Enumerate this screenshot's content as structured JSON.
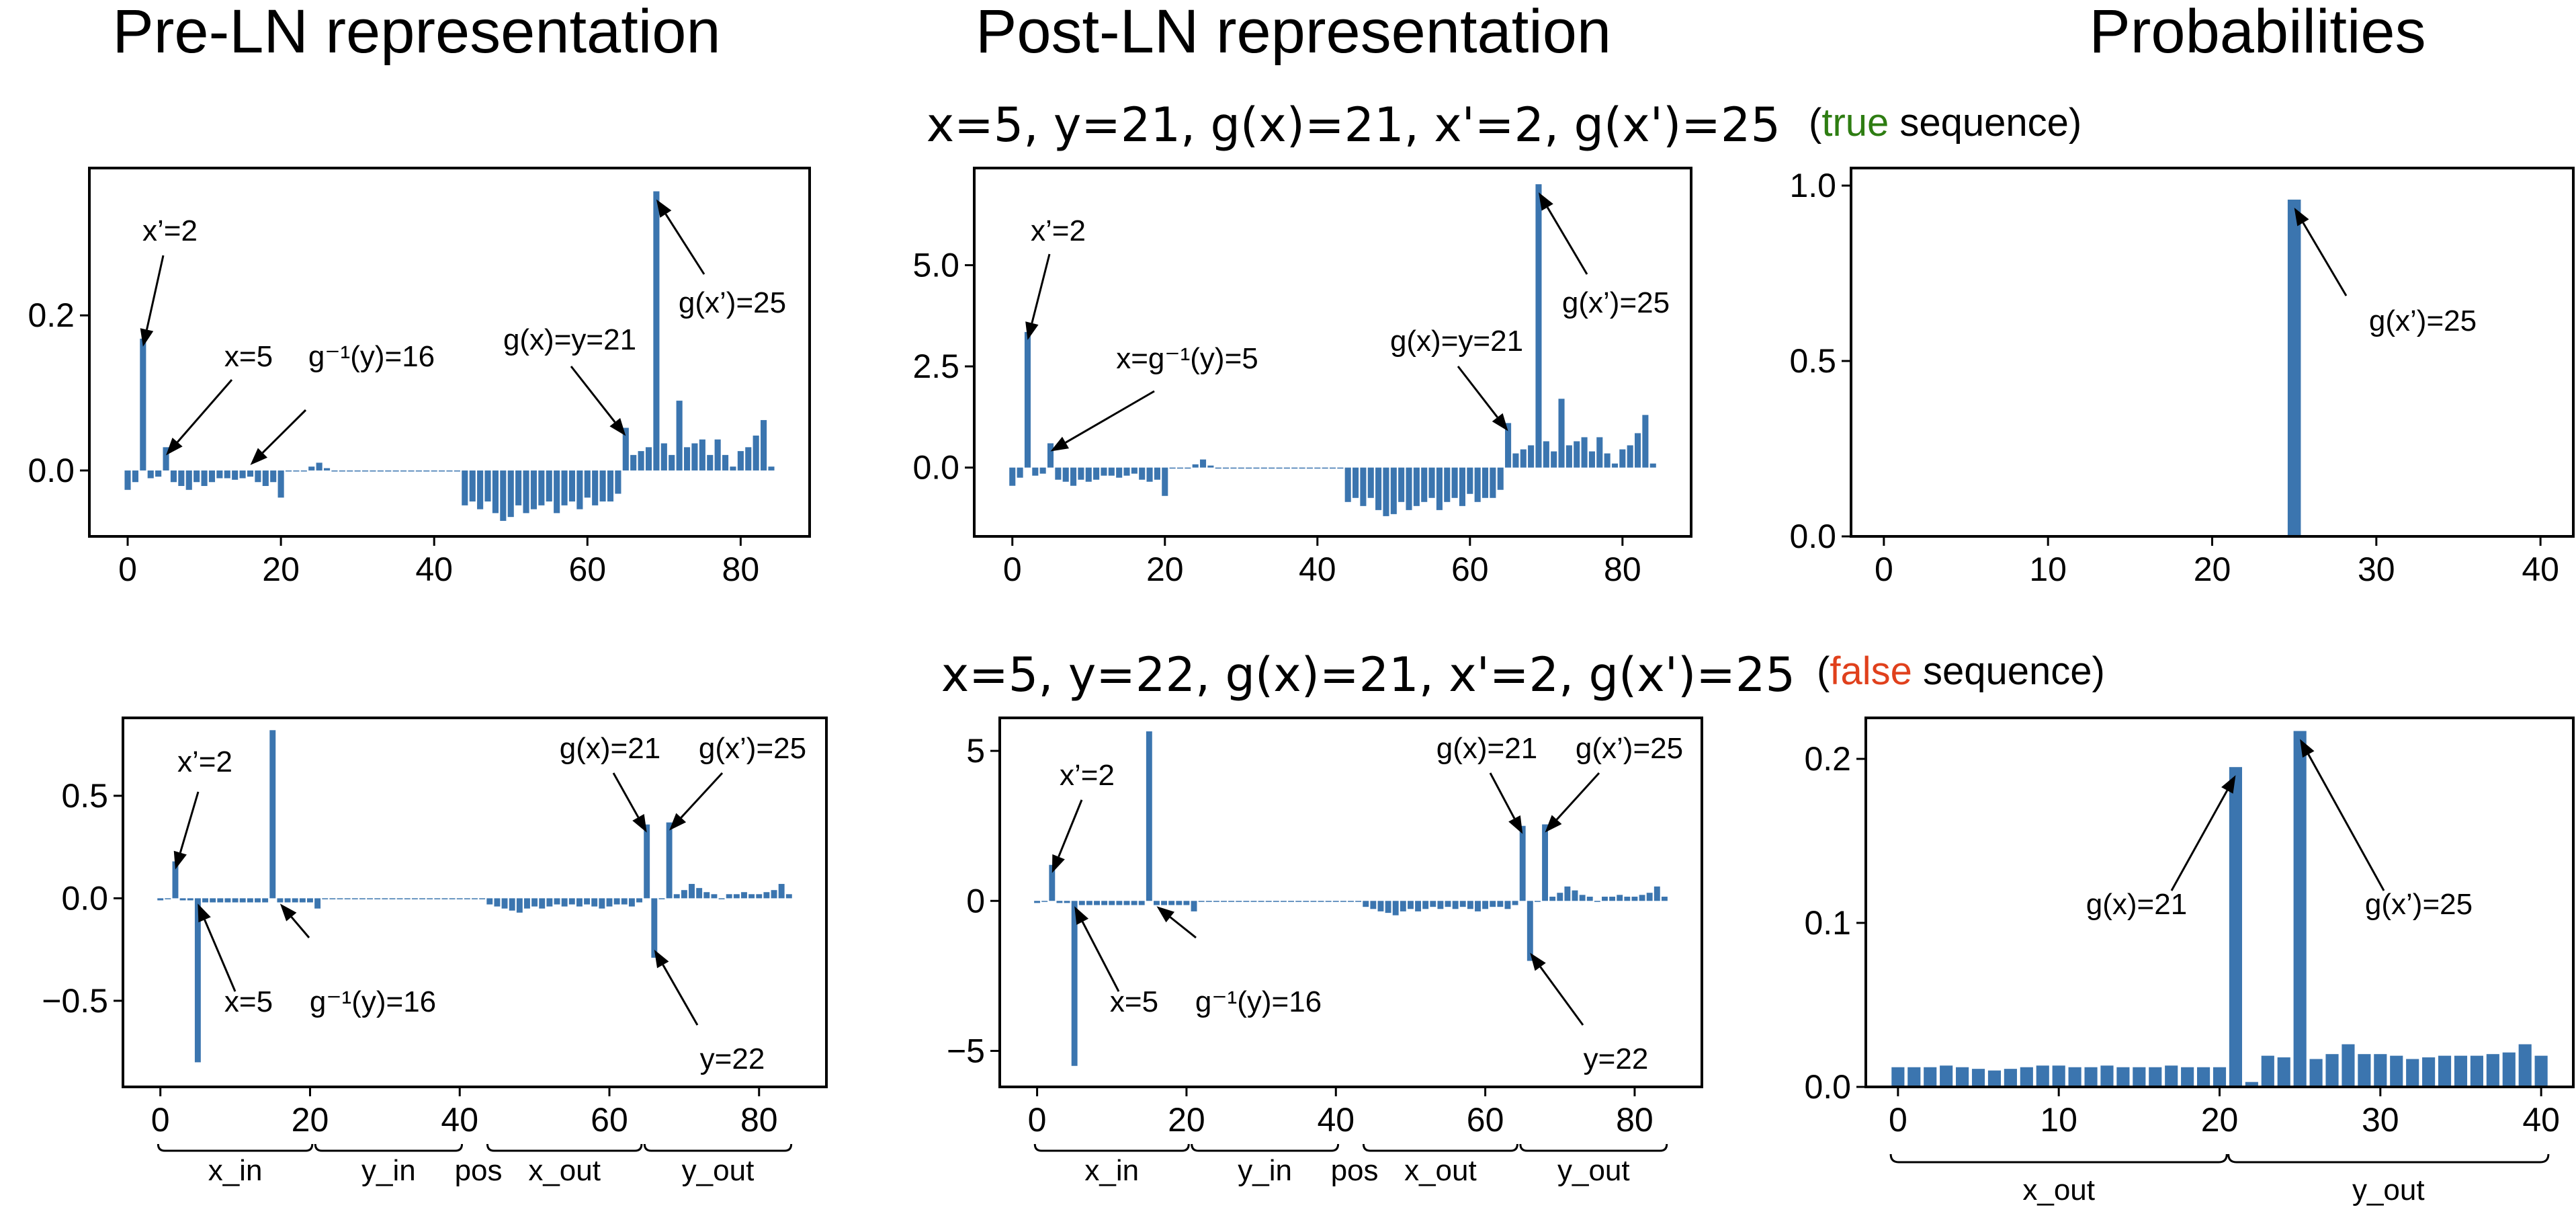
{
  "column_titles": [
    "Pre-LN representation",
    "Post-LN representation",
    "Probabilities"
  ],
  "rows": [
    {
      "sequence": "x=5, y=21, g(x)=21, x'=2, g(x')=25",
      "label_open": "(",
      "label_word": "true",
      "label_rest": " sequence)",
      "label_color": "#2e7d12"
    },
    {
      "sequence": "x=5, y=22, g(x)=21, x'=2, g(x')=25",
      "label_open": "(",
      "label_word": "false",
      "label_rest": " sequence)",
      "label_color": "#e0401c"
    }
  ],
  "colors": {
    "bar": "#3b75af",
    "axes": "#000000"
  },
  "chart_data": [
    {
      "id": "pre_true",
      "type": "bar",
      "title": "Pre-LN representation",
      "xlim": [
        -5,
        89
      ],
      "ylim": [
        -0.085,
        0.39
      ],
      "xticks": [
        0,
        20,
        40,
        60,
        80
      ],
      "yticks": [
        0.0,
        0.2
      ],
      "ytick_labels": [
        "0.0",
        "0.2"
      ],
      "x": [
        0,
        1,
        2,
        3,
        4,
        5,
        6,
        7,
        8,
        9,
        10,
        11,
        12,
        13,
        14,
        15,
        16,
        17,
        18,
        19,
        20,
        21,
        22,
        23,
        24,
        25,
        26,
        27,
        28,
        29,
        30,
        31,
        32,
        33,
        34,
        35,
        36,
        37,
        38,
        39,
        40,
        41,
        42,
        43,
        44,
        45,
        46,
        47,
        48,
        49,
        50,
        51,
        52,
        53,
        54,
        55,
        56,
        57,
        58,
        59,
        60,
        61,
        62,
        63,
        64,
        65,
        66,
        67,
        68,
        69,
        70,
        71,
        72,
        73,
        74,
        75,
        76,
        77,
        78,
        79,
        80,
        81,
        82,
        83,
        84
      ],
      "values": [
        -0.025,
        -0.015,
        0.17,
        -0.01,
        -0.008,
        0.03,
        -0.015,
        -0.02,
        -0.025,
        -0.015,
        -0.02,
        -0.015,
        -0.01,
        -0.01,
        -0.012,
        -0.01,
        -0.008,
        -0.015,
        -0.02,
        -0.015,
        -0.035,
        0.0,
        0.0,
        0.0,
        0.005,
        0.01,
        0.003,
        0.0,
        0.0,
        0.0,
        0.0,
        0.0,
        0.0,
        0.0,
        0.0,
        0.0,
        0.0,
        0.0,
        0.0,
        0.0,
        0.0,
        0.0,
        0.0,
        0.0,
        -0.045,
        -0.04,
        -0.05,
        -0.04,
        -0.055,
        -0.065,
        -0.06,
        -0.045,
        -0.055,
        -0.05,
        -0.045,
        -0.04,
        -0.055,
        -0.045,
        -0.04,
        -0.05,
        -0.035,
        -0.045,
        -0.04,
        -0.04,
        -0.03,
        0.055,
        0.02,
        0.025,
        0.03,
        0.36,
        0.035,
        0.02,
        0.09,
        0.03,
        0.035,
        0.04,
        0.02,
        0.04,
        0.02,
        0.005,
        0.025,
        0.03,
        0.045,
        0.065,
        0.005
      ],
      "annotations": [
        {
          "text": "x’=2",
          "x": 2,
          "y": 0.17
        },
        {
          "text": "x=5",
          "x": 5,
          "y": 0.03
        },
        {
          "text": "g⁻¹(y)=16",
          "x": 16,
          "y": 0.0
        },
        {
          "text": "g(x)=y=21",
          "x": 65,
          "y": 0.055
        },
        {
          "text": "g(x’)=25",
          "x": 69,
          "y": 0.36
        }
      ]
    },
    {
      "id": "post_true",
      "type": "bar",
      "title": "Post-LN representation",
      "xlim": [
        -5,
        89
      ],
      "ylim": [
        -1.7,
        7.4
      ],
      "xticks": [
        0,
        20,
        40,
        60,
        80
      ],
      "yticks": [
        0.0,
        2.5,
        5.0
      ],
      "ytick_labels": [
        "0.0",
        "2.5",
        "5.0"
      ],
      "x": [
        0,
        1,
        2,
        3,
        4,
        5,
        6,
        7,
        8,
        9,
        10,
        11,
        12,
        13,
        14,
        15,
        16,
        17,
        18,
        19,
        20,
        21,
        22,
        23,
        24,
        25,
        26,
        27,
        28,
        29,
        30,
        31,
        32,
        33,
        34,
        35,
        36,
        37,
        38,
        39,
        40,
        41,
        42,
        43,
        44,
        45,
        46,
        47,
        48,
        49,
        50,
        51,
        52,
        53,
        54,
        55,
        56,
        57,
        58,
        59,
        60,
        61,
        62,
        63,
        64,
        65,
        66,
        67,
        68,
        69,
        70,
        71,
        72,
        73,
        74,
        75,
        76,
        77,
        78,
        79,
        80,
        81,
        82,
        83,
        84
      ],
      "values": [
        -0.45,
        -0.25,
        3.35,
        -0.2,
        -0.15,
        0.6,
        -0.3,
        -0.35,
        -0.45,
        -0.3,
        -0.35,
        -0.3,
        -0.2,
        -0.2,
        -0.25,
        -0.2,
        -0.15,
        -0.3,
        -0.35,
        -0.3,
        -0.7,
        0.0,
        0.0,
        0.0,
        0.08,
        0.2,
        0.05,
        0.0,
        0.0,
        0.0,
        0.0,
        0.0,
        0.0,
        0.0,
        0.0,
        0.0,
        0.0,
        0.0,
        0.0,
        0.0,
        0.0,
        0.0,
        0.0,
        0.0,
        -0.85,
        -0.75,
        -0.95,
        -0.75,
        -1.05,
        -1.2,
        -1.15,
        -0.85,
        -1.05,
        -0.95,
        -0.85,
        -0.75,
        -1.05,
        -0.85,
        -0.75,
        -0.95,
        -0.65,
        -0.85,
        -0.75,
        -0.75,
        -0.55,
        1.1,
        0.35,
        0.45,
        0.55,
        7.0,
        0.65,
        0.4,
        1.7,
        0.55,
        0.65,
        0.75,
        0.4,
        0.75,
        0.35,
        0.1,
        0.45,
        0.55,
        0.85,
        1.3,
        0.1
      ],
      "annotations": [
        {
          "text": "x’=2",
          "x": 2,
          "y": 3.35
        },
        {
          "text": "x=g⁻¹(y)=5",
          "x": 5,
          "y": 0.6
        },
        {
          "text": "g(x)=y=21",
          "x": 65,
          "y": 1.1
        },
        {
          "text": "g(x’)=25",
          "x": 69,
          "y": 7.0
        }
      ]
    },
    {
      "id": "prob_true",
      "type": "bar",
      "title": "Probabilities",
      "xlim": [
        -2,
        42
      ],
      "ylim": [
        0,
        1.05
      ],
      "xticks": [
        0,
        10,
        20,
        30,
        40
      ],
      "yticks": [
        0.0,
        0.5,
        1.0
      ],
      "ytick_labels": [
        "0.0",
        "0.5",
        "1.0"
      ],
      "x": [
        0,
        1,
        2,
        3,
        4,
        5,
        6,
        7,
        8,
        9,
        10,
        11,
        12,
        13,
        14,
        15,
        16,
        17,
        18,
        19,
        20,
        21,
        22,
        23,
        24,
        25,
        26,
        27,
        28,
        29,
        30,
        31,
        32,
        33,
        34,
        35,
        36,
        37,
        38,
        39,
        40
      ],
      "values": [
        0,
        0,
        0,
        0,
        0,
        0,
        0,
        0,
        0,
        0,
        0,
        0,
        0,
        0,
        0,
        0,
        0,
        0,
        0,
        0,
        0,
        0,
        0,
        0,
        0,
        0.96,
        0,
        0,
        0,
        0,
        0,
        0,
        0,
        0,
        0,
        0,
        0,
        0,
        0,
        0,
        0
      ],
      "annotations": [
        {
          "text": "g(x’)=25",
          "x": 25,
          "y": 0.96
        }
      ]
    },
    {
      "id": "pre_false",
      "type": "bar",
      "title": "Pre-LN representation",
      "xlim": [
        -5,
        89
      ],
      "ylim": [
        -0.92,
        0.88
      ],
      "xticks": [
        0,
        20,
        40,
        60,
        80
      ],
      "yticks": [
        -0.5,
        0.0,
        0.5
      ],
      "ytick_labels": [
        "−0.5",
        "0.0",
        "0.5"
      ],
      "x": [
        0,
        1,
        2,
        3,
        4,
        5,
        6,
        7,
        8,
        9,
        10,
        11,
        12,
        13,
        14,
        15,
        16,
        17,
        18,
        19,
        20,
        21,
        22,
        23,
        24,
        25,
        26,
        27,
        28,
        29,
        30,
        31,
        32,
        33,
        34,
        35,
        36,
        37,
        38,
        39,
        40,
        41,
        42,
        43,
        44,
        45,
        46,
        47,
        48,
        49,
        50,
        51,
        52,
        53,
        54,
        55,
        56,
        57,
        58,
        59,
        60,
        61,
        62,
        63,
        64,
        65,
        66,
        67,
        68,
        69,
        70,
        71,
        72,
        73,
        74,
        75,
        76,
        77,
        78,
        79,
        80,
        81,
        82,
        83,
        84
      ],
      "values": [
        -0.01,
        0.0,
        0.18,
        -0.01,
        -0.01,
        -0.8,
        -0.02,
        -0.02,
        -0.02,
        -0.02,
        -0.02,
        -0.02,
        -0.02,
        -0.02,
        -0.02,
        0.82,
        -0.02,
        -0.02,
        -0.02,
        -0.02,
        -0.02,
        -0.05,
        0.0,
        0.0,
        0.0,
        0.0,
        0.0,
        0.0,
        0.0,
        0.0,
        0.0,
        0.0,
        0.0,
        0.0,
        0.0,
        0.0,
        0.0,
        0.0,
        0.0,
        0.0,
        0.0,
        0.0,
        0.0,
        0.0,
        -0.03,
        -0.04,
        -0.05,
        -0.06,
        -0.07,
        -0.05,
        -0.04,
        -0.05,
        -0.04,
        -0.03,
        -0.04,
        -0.03,
        -0.04,
        -0.03,
        -0.04,
        -0.05,
        -0.04,
        -0.03,
        -0.03,
        -0.04,
        -0.02,
        0.36,
        -0.29,
        0.0,
        0.37,
        0.02,
        0.04,
        0.07,
        0.05,
        0.03,
        0.02,
        0.0,
        0.02,
        0.02,
        0.03,
        0.02,
        0.02,
        0.03,
        0.04,
        0.07,
        0.02
      ],
      "annotations": [
        {
          "text": "x’=2",
          "x": 2,
          "y": 0.18
        },
        {
          "text": "x=5",
          "x": 5,
          "y": 0.0
        },
        {
          "text": "g⁻¹(y)=16",
          "x": 16,
          "y": 0.0
        },
        {
          "text": "g(x)=21",
          "x": 65,
          "y": 0.36
        },
        {
          "text": "g(x’)=25",
          "x": 68,
          "y": 0.37
        },
        {
          "text": "y=22",
          "x": 66,
          "y": -0.29
        }
      ]
    },
    {
      "id": "post_false",
      "type": "bar",
      "title": "Post-LN representation",
      "xlim": [
        -5,
        89
      ],
      "ylim": [
        -6.2,
        6.1
      ],
      "xticks": [
        0,
        20,
        40,
        60,
        80
      ],
      "yticks": [
        -5,
        0,
        5
      ],
      "ytick_labels": [
        "−5",
        "0",
        "5"
      ],
      "x": [
        0,
        1,
        2,
        3,
        4,
        5,
        6,
        7,
        8,
        9,
        10,
        11,
        12,
        13,
        14,
        15,
        16,
        17,
        18,
        19,
        20,
        21,
        22,
        23,
        24,
        25,
        26,
        27,
        28,
        29,
        30,
        31,
        32,
        33,
        34,
        35,
        36,
        37,
        38,
        39,
        40,
        41,
        42,
        43,
        44,
        45,
        46,
        47,
        48,
        49,
        50,
        51,
        52,
        53,
        54,
        55,
        56,
        57,
        58,
        59,
        60,
        61,
        62,
        63,
        64,
        65,
        66,
        67,
        68,
        69,
        70,
        71,
        72,
        73,
        74,
        75,
        76,
        77,
        78,
        79,
        80,
        81,
        82,
        83,
        84
      ],
      "values": [
        -0.07,
        0.0,
        1.2,
        -0.07,
        -0.07,
        -5.5,
        -0.14,
        -0.14,
        -0.14,
        -0.14,
        -0.14,
        -0.14,
        -0.14,
        -0.14,
        -0.14,
        5.65,
        -0.14,
        -0.14,
        -0.14,
        -0.14,
        -0.14,
        -0.35,
        0.0,
        0.0,
        0.0,
        0.0,
        0.0,
        0.0,
        0.0,
        0.0,
        0.0,
        0.0,
        0.0,
        0.0,
        0.0,
        0.0,
        0.0,
        0.0,
        0.0,
        0.0,
        0.0,
        0.0,
        0.0,
        0.0,
        -0.2,
        -0.27,
        -0.35,
        -0.4,
        -0.48,
        -0.35,
        -0.27,
        -0.35,
        -0.27,
        -0.2,
        -0.27,
        -0.2,
        -0.27,
        -0.2,
        -0.27,
        -0.35,
        -0.27,
        -0.2,
        -0.2,
        -0.27,
        -0.14,
        2.5,
        -2.0,
        0.0,
        2.55,
        0.14,
        0.27,
        0.48,
        0.35,
        0.2,
        0.14,
        0.0,
        0.14,
        0.14,
        0.2,
        0.14,
        0.14,
        0.2,
        0.27,
        0.48,
        0.14
      ],
      "annotations": [
        {
          "text": "x’=2",
          "x": 2,
          "y": 1.2
        },
        {
          "text": "x=5",
          "x": 5,
          "y": 0.0
        },
        {
          "text": "g⁻¹(y)=16",
          "x": 16,
          "y": 0.0
        },
        {
          "text": "g(x)=21",
          "x": 65,
          "y": 2.5
        },
        {
          "text": "g(x’)=25",
          "x": 68,
          "y": 2.55
        },
        {
          "text": "y=22",
          "x": 66,
          "y": -2.0
        }
      ]
    },
    {
      "id": "prob_false",
      "type": "bar",
      "title": "Probabilities",
      "xlim": [
        -2,
        42
      ],
      "ylim": [
        0,
        0.225
      ],
      "xticks": [
        0,
        10,
        20,
        30,
        40
      ],
      "yticks": [
        0.0,
        0.1,
        0.2
      ],
      "ytick_labels": [
        "0.0",
        "0.1",
        "0.2"
      ],
      "x": [
        0,
        1,
        2,
        3,
        4,
        5,
        6,
        7,
        8,
        9,
        10,
        11,
        12,
        13,
        14,
        15,
        16,
        17,
        18,
        19,
        20,
        21,
        22,
        23,
        24,
        25,
        26,
        27,
        28,
        29,
        30,
        31,
        32,
        33,
        34,
        35,
        36,
        37,
        38,
        39,
        40
      ],
      "values": [
        0.012,
        0.012,
        0.012,
        0.013,
        0.012,
        0.011,
        0.01,
        0.011,
        0.012,
        0.013,
        0.013,
        0.012,
        0.012,
        0.013,
        0.012,
        0.012,
        0.012,
        0.013,
        0.012,
        0.012,
        0.012,
        0.195,
        0.003,
        0.019,
        0.018,
        0.217,
        0.017,
        0.02,
        0.026,
        0.02,
        0.02,
        0.019,
        0.017,
        0.018,
        0.019,
        0.019,
        0.019,
        0.02,
        0.021,
        0.026,
        0.019
      ],
      "annotations": [
        {
          "text": "g(x)=21",
          "x": 21,
          "y": 0.195
        },
        {
          "text": "g(x’)=25",
          "x": 25,
          "y": 0.217
        }
      ]
    }
  ],
  "x_groups_rep": [
    {
      "label": "x_in",
      "from": 0,
      "to": 20
    },
    {
      "label": "y_in",
      "from": 21,
      "to": 40
    },
    {
      "label": "pos",
      "from": 41,
      "to": 44
    },
    {
      "label": "x_out",
      "from": 44,
      "to": 64
    },
    {
      "label": "y_out",
      "from": 65,
      "to": 84
    }
  ],
  "x_groups_prob": [
    {
      "label": "x_out",
      "from": 0,
      "to": 20
    },
    {
      "label": "y_out",
      "from": 21,
      "to": 40
    }
  ]
}
